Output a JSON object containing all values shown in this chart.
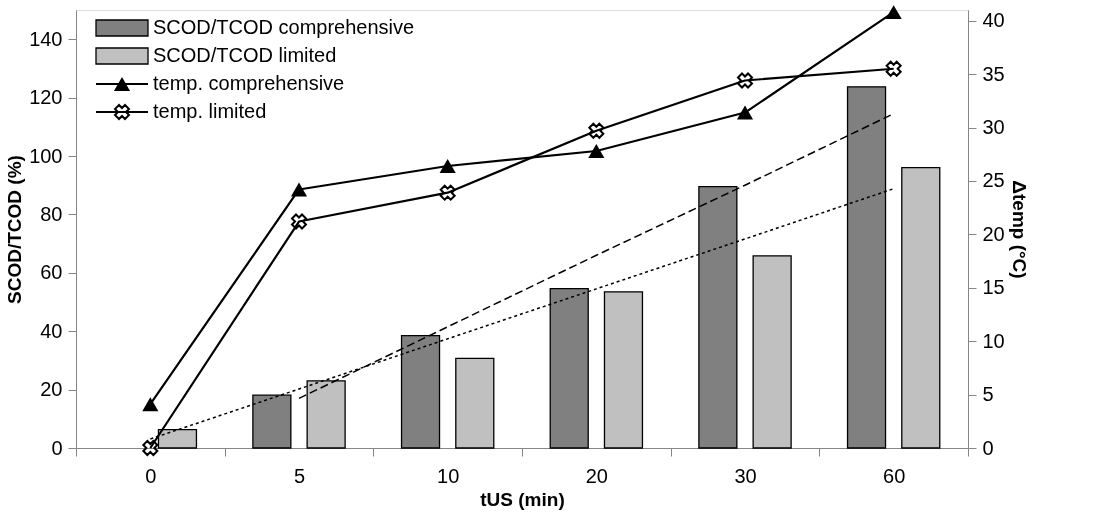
{
  "chart_data": {
    "type": "bar",
    "categories": [
      "0",
      "5",
      "10",
      "20",
      "30",
      "60"
    ],
    "xlabel": "tUS (min)",
    "ylabel": "SCOD/TCOD (%)",
    "y2label": "Δtemp (°C)",
    "ylim": [
      0,
      150
    ],
    "yticks": [
      0,
      20,
      40,
      60,
      80,
      100,
      120,
      140
    ],
    "y2lim": [
      0,
      41
    ],
    "y2ticks": [
      0,
      5,
      10,
      15,
      20,
      25,
      30,
      35,
      40
    ],
    "grid": false,
    "legend": "top left",
    "series": [
      {
        "name": "SCOD/TCOD comprehensive",
        "color": "#808080",
        "values": [
          null,
          18.1,
          38.5,
          54.6,
          89.5,
          123.7
        ]
      },
      {
        "name": "SCOD/TCOD limited",
        "color": "#c0c0c0",
        "values": [
          6.3,
          23.0,
          30.7,
          53.5,
          65.8,
          96.0
        ]
      },
      {
        "name": "temp. comprehensive",
        "type": "line",
        "axis": "y2",
        "color": "#000000",
        "marker": "triangle",
        "line_style": "solid",
        "values": [
          4.1,
          24.2,
          26.4,
          27.8,
          31.4,
          40.8
        ]
      },
      {
        "name": "temp. limited",
        "type": "line",
        "axis": "y2",
        "color": "#000000",
        "marker": "cross",
        "line_style": "solid",
        "values": [
          0,
          21.2,
          23.9,
          29.7,
          34.4,
          35.5
        ]
      },
      {
        "type": "line",
        "color": "#000000",
        "marker": "none",
        "line_style": "dashed",
        "values": [
          null,
          17.0,
          41.5,
          66.0,
          90.0,
          114.5
        ]
      },
      {
        "type": "line",
        "color": "#000000",
        "marker": "none",
        "line_style": "dotted",
        "values": [
          3.1,
          20.2,
          37.4,
          54.5,
          71.6,
          88.8
        ]
      }
    ]
  }
}
